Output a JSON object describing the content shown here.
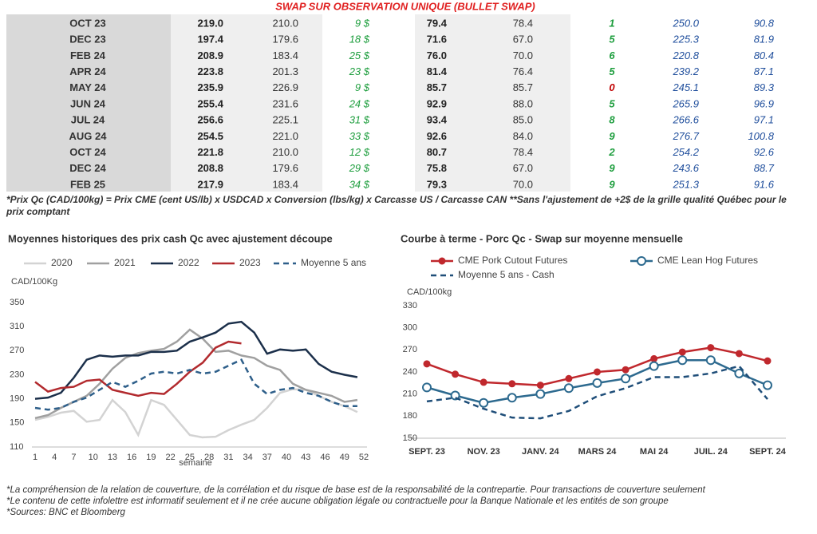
{
  "table": {
    "title": "SWAP SUR OBSERVATION UNIQUE (BULLET SWAP)",
    "column_colors": [
      "#333333",
      "#222222",
      "#333333",
      "#1e9e3e",
      "#222222",
      "#333333",
      "#1e9e3e",
      "#1f4e9c",
      "#1f4e9c"
    ],
    "zero_color": "#c00000",
    "rows": [
      [
        "OCT 23",
        "219.0",
        "210.0",
        "9 $",
        "79.4",
        "78.4",
        "1",
        "250.0",
        "90.8"
      ],
      [
        "DEC 23",
        "197.4",
        "179.6",
        "18 $",
        "71.6",
        "67.0",
        "5",
        "225.3",
        "81.9"
      ],
      [
        "FEB 24",
        "208.9",
        "183.4",
        "25 $",
        "76.0",
        "70.0",
        "6",
        "220.8",
        "80.4"
      ],
      [
        "APR 24",
        "223.8",
        "201.3",
        "23 $",
        "81.4",
        "76.4",
        "5",
        "239.2",
        "87.1"
      ],
      [
        "MAY 24",
        "235.9",
        "226.9",
        "9 $",
        "85.7",
        "85.7",
        "0",
        "245.1",
        "89.3"
      ],
      [
        "JUN 24",
        "255.4",
        "231.6",
        "24 $",
        "92.9",
        "88.0",
        "5",
        "265.9",
        "96.9"
      ],
      [
        "JUL 24",
        "256.6",
        "225.1",
        "31 $",
        "93.4",
        "85.0",
        "8",
        "266.6",
        "97.1"
      ],
      [
        "AUG 24",
        "254.5",
        "221.0",
        "33 $",
        "92.6",
        "84.0",
        "9",
        "276.7",
        "100.8"
      ],
      [
        "OCT 24",
        "221.8",
        "210.0",
        "12 $",
        "80.7",
        "78.4",
        "2",
        "254.2",
        "92.6"
      ],
      [
        "DEC 24",
        "208.8",
        "179.6",
        "29 $",
        "75.8",
        "67.0",
        "9",
        "243.6",
        "88.7"
      ],
      [
        "FEB 25",
        "217.9",
        "183.4",
        "34 $",
        "79.3",
        "70.0",
        "9",
        "251.3",
        "91.6"
      ]
    ]
  },
  "footnote": "*Prix Qc (CAD/100kg) = Prix CME (cent US/lb) x USDCAD x Conversion (lbs/kg) x Carcasse US / Carcasse CAN **Sans l'ajustement de +2$ de la grille qualité Québec pour le prix comptant",
  "chart_data": [
    {
      "type": "line",
      "title": "Moyennes historiques des prix cash Qc avec ajustement découpe",
      "y_label": "CAD/100Kg",
      "x_label": "semaine",
      "x": [
        1,
        3,
        5,
        7,
        9,
        11,
        13,
        15,
        17,
        19,
        21,
        23,
        25,
        27,
        29,
        31,
        33,
        35,
        37,
        39,
        41,
        43,
        45,
        47,
        49,
        51
      ],
      "xlim": [
        1,
        52
      ],
      "xticks": [
        1,
        4,
        7,
        10,
        13,
        16,
        19,
        22,
        25,
        28,
        31,
        34,
        37,
        40,
        43,
        46,
        49,
        52
      ],
      "ylim": [
        110,
        350
      ],
      "yticks": [
        110,
        150,
        190,
        230,
        270,
        310,
        350
      ],
      "series": [
        {
          "name": "2020",
          "color": "#d3d3d3",
          "values": [
            155,
            160,
            167,
            170,
            152,
            155,
            188,
            168,
            130,
            188,
            180,
            155,
            130,
            126,
            127,
            138,
            147,
            155,
            175,
            200,
            206,
            205,
            195,
            185,
            178,
            168
          ]
        },
        {
          "name": "2021",
          "color": "#a0a0a0",
          "values": [
            158,
            163,
            175,
            185,
            195,
            215,
            240,
            258,
            266,
            270,
            273,
            285,
            305,
            290,
            268,
            270,
            262,
            258,
            245,
            238,
            215,
            205,
            200,
            195,
            185,
            188
          ]
        },
        {
          "name": "2022",
          "color": "#1b2f4a",
          "values": [
            190,
            192,
            200,
            225,
            255,
            262,
            260,
            262,
            262,
            268,
            268,
            270,
            285,
            292,
            300,
            315,
            318,
            300,
            265,
            272,
            270,
            272,
            248,
            235,
            230,
            226
          ]
        },
        {
          "name": "2023",
          "color": "#b22a2e",
          "values": [
            218,
            202,
            208,
            210,
            220,
            222,
            205,
            200,
            195,
            200,
            198,
            215,
            235,
            250,
            275,
            285,
            282,
            null,
            null,
            null,
            null,
            null,
            null,
            null,
            null,
            null
          ]
        },
        {
          "name": "Moyenne 5 ans",
          "color": "#2e5f8a",
          "dashed": true,
          "values": [
            175,
            172,
            175,
            185,
            192,
            205,
            218,
            210,
            220,
            232,
            235,
            232,
            238,
            232,
            235,
            245,
            255,
            215,
            198,
            205,
            208,
            200,
            195,
            185,
            178,
            178
          ]
        }
      ]
    },
    {
      "type": "line",
      "title": "Courbe à terme - Porc Qc - Swap sur moyenne mensuelle",
      "y_label": "CAD/100kg",
      "categories": [
        "SEPT. 23",
        null,
        "NOV. 23",
        null,
        "JANV. 24",
        null,
        "MARS 24",
        null,
        "MAI 24",
        null,
        "JUIL. 24",
        null,
        "SEPT. 24"
      ],
      "ylim": [
        150,
        330
      ],
      "yticks": [
        150,
        180,
        210,
        240,
        270,
        300,
        330
      ],
      "series": [
        {
          "name": "CME Pork Cutout Futures",
          "color": "#c0282d",
          "marker": "filled",
          "values": [
            251,
            237,
            226,
            224,
            222,
            231,
            240,
            243,
            258,
            267,
            273,
            265,
            255
          ]
        },
        {
          "name": "CME Lean Hog Futures",
          "color": "#2d6a8f",
          "marker": "hollow",
          "values": [
            219,
            208,
            198,
            205,
            210,
            218,
            225,
            231,
            248,
            256,
            256,
            238,
            222
          ]
        },
        {
          "name": "Moyenne 5 ans - Cash",
          "color": "#1f4e79",
          "dashed": true,
          "values": [
            200,
            205,
            190,
            178,
            177,
            187,
            207,
            218,
            233,
            233,
            238,
            248,
            203
          ]
        }
      ]
    }
  ],
  "notes": [
    "*La compréhension de la relation de couverture, de la corrélation et du risque de base est de la responsabilité de la contrepartie. Pour transactions de couverture seulement",
    "*Le contenu de cette infolettre est informatif seulement et il ne crée aucune obligation légale ou contractuelle pour la Banque Nationale et les entités de son groupe",
    "*Sources: BNC et Bloomberg"
  ]
}
